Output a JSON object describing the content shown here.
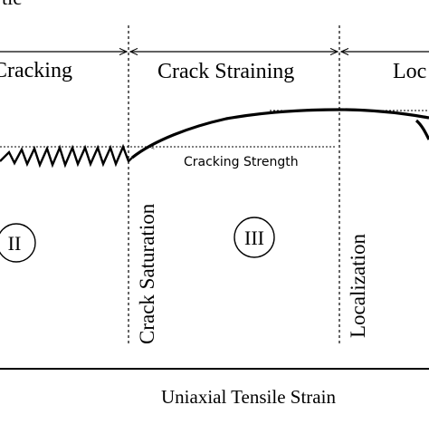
{
  "top_label_fragment": "tic",
  "zones": {
    "cracking": "Cracking",
    "crack_straining": "Crack Straining",
    "localization_partial": "Loc"
  },
  "annotations": {
    "cracking_strength": "Cracking Strength"
  },
  "stage_markers": {
    "ii": "II",
    "iii": "III"
  },
  "boundary_labels": {
    "crack_saturation": "Crack Saturation",
    "localization": "Localization"
  },
  "x_axis_label": "Uniaxial Tensile Strain"
}
